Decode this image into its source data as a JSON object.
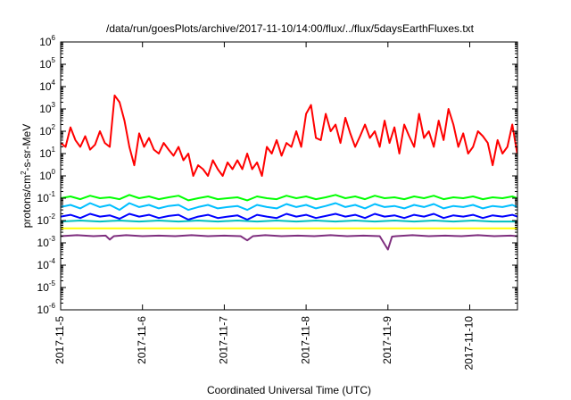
{
  "chart_data": {
    "type": "line",
    "title": "/data/run/goesPlots/archive/2017-11-10/14:00/flux/../flux/5daysEarthFluxes.txt",
    "xlabel": "Coordinated Universal Time (UTC)",
    "ylabel_base": "protons/cm",
    "ylabel_sup": "2",
    "ylabel_rest": "-s-sr-MeV",
    "yscale": "log",
    "ylim": [
      1e-06,
      1000000.0
    ],
    "ytick_exponents": [
      "-6",
      "-5",
      "-4",
      "-3",
      "-2",
      "-1",
      "0",
      "1",
      "2",
      "3",
      "4",
      "5",
      "6"
    ],
    "xlim": [
      "2017-11-05 00:00",
      "2017-11-10 14:00"
    ],
    "xticks": [
      "2017-11-5",
      "2017-11-6",
      "2017-11-7",
      "2017-11-8",
      "2017-11-9",
      "2017-11-10"
    ],
    "grid": false,
    "series": [
      {
        "color": "#ff0000",
        "x_days": [
          0.0,
          0.06,
          0.12,
          0.18,
          0.24,
          0.3,
          0.36,
          0.42,
          0.48,
          0.54,
          0.6,
          0.66,
          0.72,
          0.78,
          0.84,
          0.9,
          0.96,
          1.02,
          1.08,
          1.14,
          1.2,
          1.26,
          1.32,
          1.38,
          1.44,
          1.5,
          1.56,
          1.62,
          1.68,
          1.74,
          1.8,
          1.86,
          1.92,
          1.98,
          2.04,
          2.1,
          2.16,
          2.22,
          2.28,
          2.34,
          2.4,
          2.46,
          2.52,
          2.58,
          2.64,
          2.7,
          2.76,
          2.82,
          2.88,
          2.94,
          3.0,
          3.06,
          3.12,
          3.18,
          3.24,
          3.3,
          3.36,
          3.42,
          3.48,
          3.54,
          3.6,
          3.66,
          3.72,
          3.78,
          3.84,
          3.9,
          3.96,
          4.02,
          4.08,
          4.14,
          4.2,
          4.26,
          4.32,
          4.38,
          4.44,
          4.5,
          4.56,
          4.62,
          4.68,
          4.74,
          4.8,
          4.86,
          4.92,
          4.98,
          5.04,
          5.1,
          5.16,
          5.22,
          5.28,
          5.34,
          5.4,
          5.46,
          5.52,
          5.58
        ],
        "values": [
          30,
          20,
          150,
          40,
          20,
          60,
          15,
          25,
          100,
          30,
          20,
          4000,
          2000,
          300,
          20,
          3,
          80,
          20,
          50,
          15,
          10,
          30,
          15,
          8,
          20,
          5,
          10,
          1,
          3,
          2,
          1,
          5,
          2,
          1,
          4,
          2,
          5,
          2,
          10,
          2,
          4,
          1,
          20,
          10,
          40,
          8,
          30,
          20,
          100,
          20,
          600,
          1500,
          50,
          40,
          600,
          100,
          200,
          30,
          400,
          80,
          20,
          60,
          200,
          50,
          100,
          20,
          300,
          30,
          150,
          10,
          200,
          60,
          20,
          600,
          50,
          100,
          20,
          300,
          40,
          1000,
          200,
          20,
          80,
          10,
          20,
          100,
          60,
          30,
          3,
          40,
          10,
          20,
          200,
          10
        ]
      },
      {
        "color": "#00ff00",
        "x_days": [
          0.0,
          0.12,
          0.24,
          0.36,
          0.48,
          0.6,
          0.72,
          0.84,
          0.96,
          1.08,
          1.2,
          1.32,
          1.44,
          1.56,
          1.68,
          1.8,
          1.92,
          2.04,
          2.16,
          2.28,
          2.4,
          2.52,
          2.64,
          2.76,
          2.88,
          3.0,
          3.12,
          3.24,
          3.36,
          3.48,
          3.6,
          3.72,
          3.84,
          3.96,
          4.08,
          4.2,
          4.32,
          4.44,
          4.56,
          4.68,
          4.8,
          4.92,
          5.04,
          5.16,
          5.28,
          5.4,
          5.52,
          5.58
        ],
        "values": [
          0.1,
          0.12,
          0.09,
          0.13,
          0.1,
          0.11,
          0.09,
          0.14,
          0.1,
          0.12,
          0.09,
          0.11,
          0.13,
          0.08,
          0.1,
          0.12,
          0.09,
          0.1,
          0.11,
          0.08,
          0.12,
          0.1,
          0.09,
          0.13,
          0.1,
          0.12,
          0.09,
          0.11,
          0.14,
          0.1,
          0.12,
          0.09,
          0.13,
          0.1,
          0.11,
          0.09,
          0.12,
          0.1,
          0.13,
          0.09,
          0.11,
          0.1,
          0.12,
          0.09,
          0.11,
          0.1,
          0.12,
          0.1
        ]
      },
      {
        "color": "#00bfff",
        "x_days": [
          0.0,
          0.12,
          0.24,
          0.36,
          0.48,
          0.6,
          0.72,
          0.84,
          0.96,
          1.08,
          1.2,
          1.32,
          1.44,
          1.56,
          1.68,
          1.8,
          1.92,
          2.04,
          2.16,
          2.28,
          2.4,
          2.52,
          2.64,
          2.76,
          2.88,
          3.0,
          3.12,
          3.24,
          3.36,
          3.48,
          3.6,
          3.72,
          3.84,
          3.96,
          4.08,
          4.2,
          4.32,
          4.44,
          4.56,
          4.68,
          4.8,
          4.92,
          5.04,
          5.16,
          5.28,
          5.4,
          5.52,
          5.58
        ],
        "values": [
          0.04,
          0.05,
          0.035,
          0.06,
          0.04,
          0.05,
          0.03,
          0.06,
          0.04,
          0.05,
          0.035,
          0.045,
          0.05,
          0.03,
          0.04,
          0.05,
          0.035,
          0.04,
          0.045,
          0.03,
          0.05,
          0.04,
          0.035,
          0.055,
          0.04,
          0.05,
          0.035,
          0.045,
          0.06,
          0.04,
          0.05,
          0.035,
          0.055,
          0.04,
          0.045,
          0.035,
          0.05,
          0.04,
          0.055,
          0.035,
          0.045,
          0.04,
          0.05,
          0.035,
          0.045,
          0.04,
          0.05,
          0.04
        ]
      },
      {
        "color": "#0000ff",
        "x_days": [
          0.0,
          0.12,
          0.24,
          0.36,
          0.48,
          0.6,
          0.72,
          0.84,
          0.96,
          1.08,
          1.2,
          1.32,
          1.44,
          1.56,
          1.68,
          1.8,
          1.92,
          2.04,
          2.16,
          2.28,
          2.4,
          2.52,
          2.64,
          2.76,
          2.88,
          3.0,
          3.12,
          3.24,
          3.36,
          3.48,
          3.6,
          3.72,
          3.84,
          3.96,
          4.08,
          4.2,
          4.32,
          4.44,
          4.56,
          4.68,
          4.8,
          4.92,
          5.04,
          5.16,
          5.28,
          5.4,
          5.52,
          5.58
        ],
        "values": [
          0.015,
          0.018,
          0.013,
          0.02,
          0.015,
          0.017,
          0.012,
          0.02,
          0.015,
          0.018,
          0.013,
          0.016,
          0.018,
          0.011,
          0.015,
          0.018,
          0.013,
          0.015,
          0.017,
          0.011,
          0.018,
          0.015,
          0.013,
          0.02,
          0.015,
          0.018,
          0.013,
          0.016,
          0.02,
          0.015,
          0.018,
          0.013,
          0.02,
          0.015,
          0.017,
          0.013,
          0.018,
          0.015,
          0.02,
          0.013,
          0.017,
          0.015,
          0.018,
          0.013,
          0.017,
          0.015,
          0.018,
          0.015
        ]
      },
      {
        "color": "#00c0c0",
        "x_days": [
          0.0,
          0.24,
          0.48,
          0.72,
          0.96,
          1.2,
          1.44,
          1.68,
          1.92,
          2.16,
          2.4,
          2.64,
          2.88,
          3.12,
          3.36,
          3.6,
          3.84,
          4.08,
          4.32,
          4.56,
          4.8,
          5.04,
          5.28,
          5.58
        ],
        "values": [
          0.009,
          0.01,
          0.009,
          0.01,
          0.009,
          0.01,
          0.009,
          0.01,
          0.009,
          0.01,
          0.009,
          0.01,
          0.009,
          0.01,
          0.009,
          0.01,
          0.009,
          0.01,
          0.009,
          0.01,
          0.009,
          0.01,
          0.009,
          0.009
        ]
      },
      {
        "color": "#ffff00",
        "x_days": [
          0.0,
          0.3,
          0.6,
          0.9,
          1.2,
          1.5,
          1.8,
          2.1,
          2.4,
          2.7,
          3.0,
          3.3,
          3.6,
          3.9,
          4.2,
          4.5,
          4.8,
          5.1,
          5.4,
          5.58
        ],
        "values": [
          0.0045,
          0.0045,
          0.0045,
          0.0045,
          0.0045,
          0.0045,
          0.0045,
          0.0045,
          0.0045,
          0.0045,
          0.0045,
          0.0045,
          0.0045,
          0.0045,
          0.0045,
          0.0045,
          0.0045,
          0.0045,
          0.0045,
          0.0045
        ]
      },
      {
        "color": "#7f2f7f",
        "x_days": [
          0.0,
          0.2,
          0.4,
          0.55,
          0.6,
          0.65,
          0.8,
          1.0,
          1.2,
          1.4,
          1.6,
          1.8,
          2.0,
          2.2,
          2.28,
          2.35,
          2.5,
          2.7,
          2.9,
          3.1,
          3.3,
          3.5,
          3.7,
          3.9,
          4.0,
          4.05,
          4.1,
          4.3,
          4.5,
          4.7,
          4.9,
          5.1,
          5.3,
          5.5,
          5.58
        ],
        "values": [
          0.002,
          0.0022,
          0.002,
          0.0021,
          0.0014,
          0.002,
          0.0022,
          0.002,
          0.0021,
          0.002,
          0.0022,
          0.002,
          0.0021,
          0.002,
          0.0013,
          0.002,
          0.0022,
          0.002,
          0.0021,
          0.002,
          0.0022,
          0.002,
          0.0021,
          0.002,
          0.0005,
          0.0019,
          0.002,
          0.0022,
          0.002,
          0.0021,
          0.002,
          0.0022,
          0.002,
          0.0021,
          0.002
        ]
      }
    ]
  }
}
